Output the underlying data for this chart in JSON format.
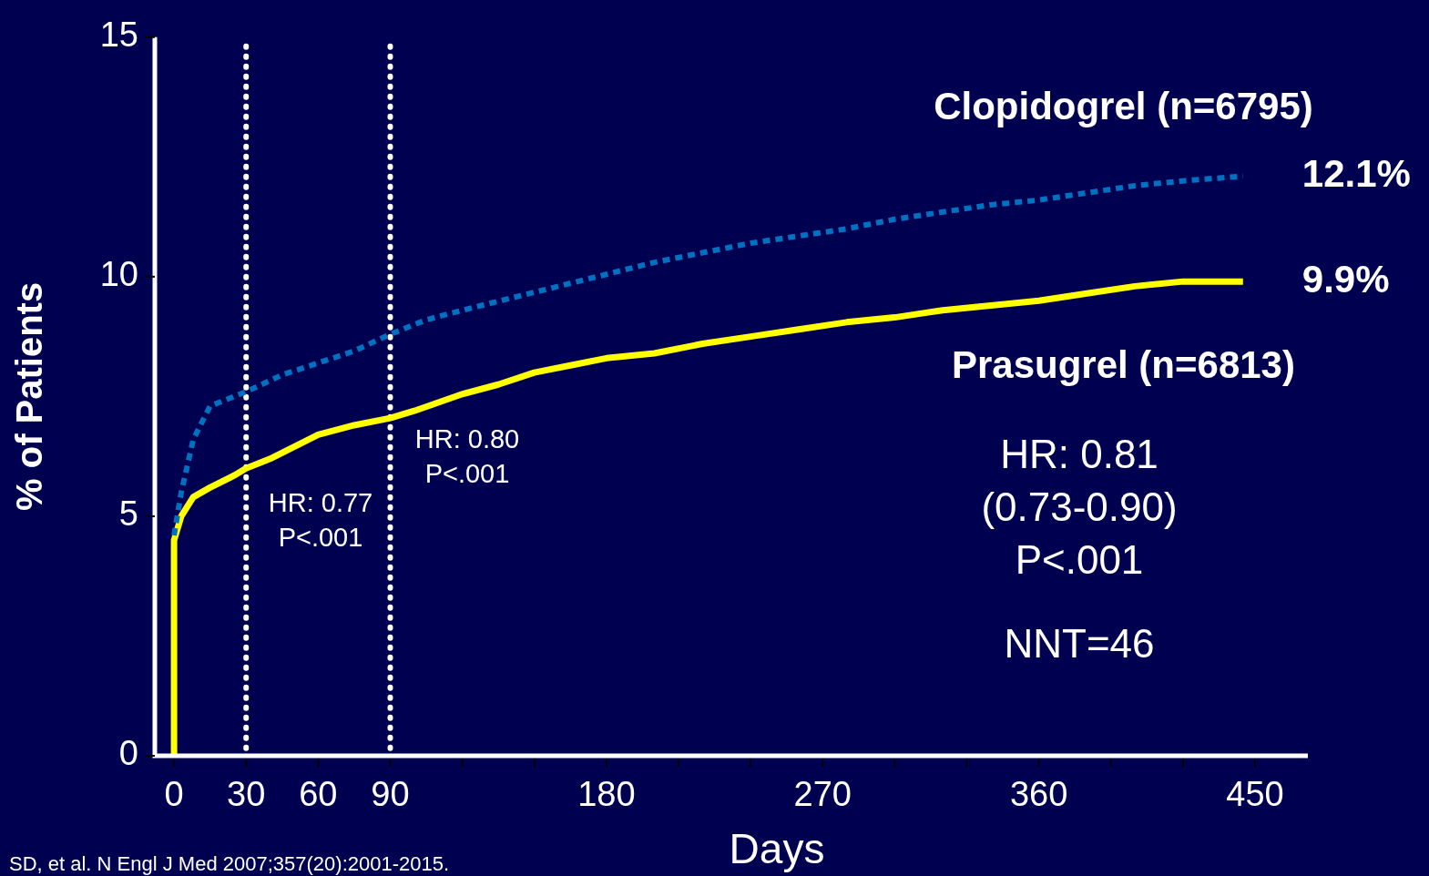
{
  "chart_data": {
    "type": "line",
    "xlabel": "Days",
    "ylabel": "% of Patients",
    "xlim": [
      -8,
      472
    ],
    "ylim": [
      0,
      15
    ],
    "xticks": [
      0,
      30,
      60,
      90,
      {
        "value": 120,
        "label": null
      },
      {
        "value": 150,
        "label": null
      },
      180,
      {
        "value": 210,
        "label": null
      },
      {
        "value": 240,
        "label": null
      },
      270,
      {
        "value": 300,
        "label": null
      },
      {
        "value": 330,
        "label": null
      },
      360,
      {
        "value": 390,
        "label": null
      },
      {
        "value": 420,
        "label": null
      },
      450
    ],
    "yticks": [
      0,
      5,
      10,
      15
    ],
    "grid": false,
    "legend": false,
    "marker": "none",
    "series": [
      {
        "name": "Clopidogrel (n=6795)",
        "color": "#0070c0",
        "line_style": "dashed",
        "x": [
          0,
          3,
          8,
          15,
          30,
          45,
          60,
          75,
          90,
          105,
          120,
          140,
          160,
          180,
          200,
          220,
          240,
          260,
          280,
          300,
          320,
          340,
          360,
          380,
          400,
          420,
          445
        ],
        "values": [
          4.6,
          5.5,
          6.6,
          7.3,
          7.6,
          7.95,
          8.2,
          8.45,
          8.8,
          9.1,
          9.3,
          9.55,
          9.8,
          10.05,
          10.3,
          10.5,
          10.7,
          10.85,
          11.0,
          11.2,
          11.35,
          11.5,
          11.6,
          11.75,
          11.9,
          12.0,
          12.1
        ],
        "value_labels": [
          null,
          null,
          null,
          null,
          null,
          null,
          null,
          null,
          null,
          null,
          null,
          null,
          null,
          null,
          null,
          null,
          null,
          null,
          null,
          null,
          null,
          null,
          null,
          null,
          null,
          null,
          "12.1%"
        ]
      },
      {
        "name": "Prasugrel (n=6813)",
        "color": "#ffff00",
        "line_style": "solid",
        "x": [
          0,
          0,
          3,
          8,
          15,
          25,
          30,
          40,
          50,
          60,
          75,
          90,
          100,
          120,
          135,
          150,
          165,
          180,
          200,
          220,
          240,
          260,
          280,
          300,
          320,
          340,
          360,
          380,
          400,
          420,
          430,
          445
        ],
        "values": [
          0,
          4.5,
          5.0,
          5.4,
          5.6,
          5.85,
          6.0,
          6.2,
          6.45,
          6.7,
          6.9,
          7.05,
          7.2,
          7.55,
          7.75,
          8.0,
          8.15,
          8.3,
          8.4,
          8.6,
          8.75,
          8.9,
          9.05,
          9.15,
          9.3,
          9.4,
          9.5,
          9.65,
          9.8,
          9.9,
          9.9,
          9.9
        ],
        "value_labels": [
          null,
          null,
          null,
          null,
          null,
          null,
          null,
          null,
          null,
          null,
          null,
          null,
          null,
          null,
          null,
          null,
          null,
          null,
          null,
          null,
          null,
          null,
          null,
          null,
          null,
          null,
          null,
          null,
          null,
          null,
          null,
          "9.9%"
        ]
      }
    ],
    "ref_lines": [
      {
        "axis": "x",
        "value": 30,
        "color": "#ffffff",
        "line_style": "dotted"
      },
      {
        "axis": "x",
        "value": 90,
        "color": "#ffffff",
        "line_style": "dotted"
      }
    ],
    "annotations": [
      "HR: 0.77\nP<.001",
      "HR: 0.80\nP<.001",
      "HR: 0.81\n(0.73-0.90)\nP<.001",
      "NNT=46",
      "SD, et al. N Engl J Med 2007;357(20):2001-2015."
    ]
  }
}
